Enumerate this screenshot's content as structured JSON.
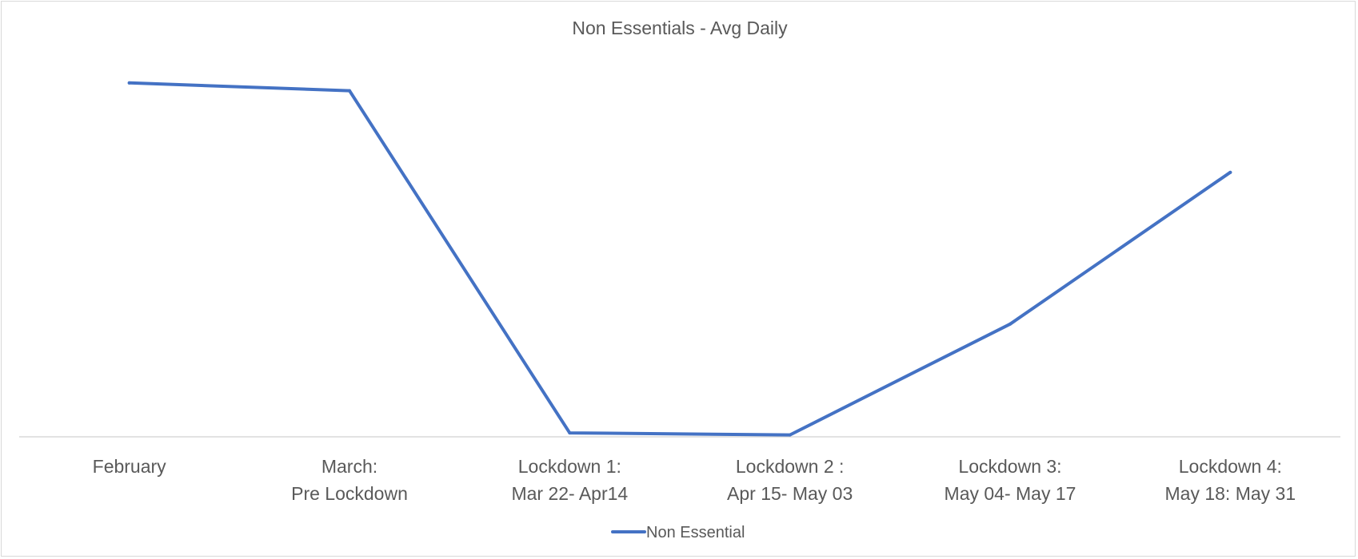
{
  "chart_data": {
    "type": "line",
    "title": "Non Essentials - Avg Daily",
    "xlabel": "",
    "ylabel": "",
    "categories": [
      [
        "February"
      ],
      [
        "March:",
        "Pre Lockdown"
      ],
      [
        "Lockdown 1:",
        "Mar 22- Apr14"
      ],
      [
        "Lockdown 2 :",
        "Apr 15- May 03"
      ],
      [
        "Lockdown 3:",
        "May 04- May 17"
      ],
      [
        "Lockdown 4:",
        "May 18: May 31"
      ]
    ],
    "series": [
      {
        "name": "Non Essential",
        "color": "#4472c4",
        "values": [
          0.91,
          0.89,
          0.01,
          0.005,
          0.29,
          0.68
        ]
      }
    ],
    "ylim": [
      0,
      1
    ],
    "grid": false,
    "y_axis_visible": false,
    "legend_position": "bottom"
  }
}
